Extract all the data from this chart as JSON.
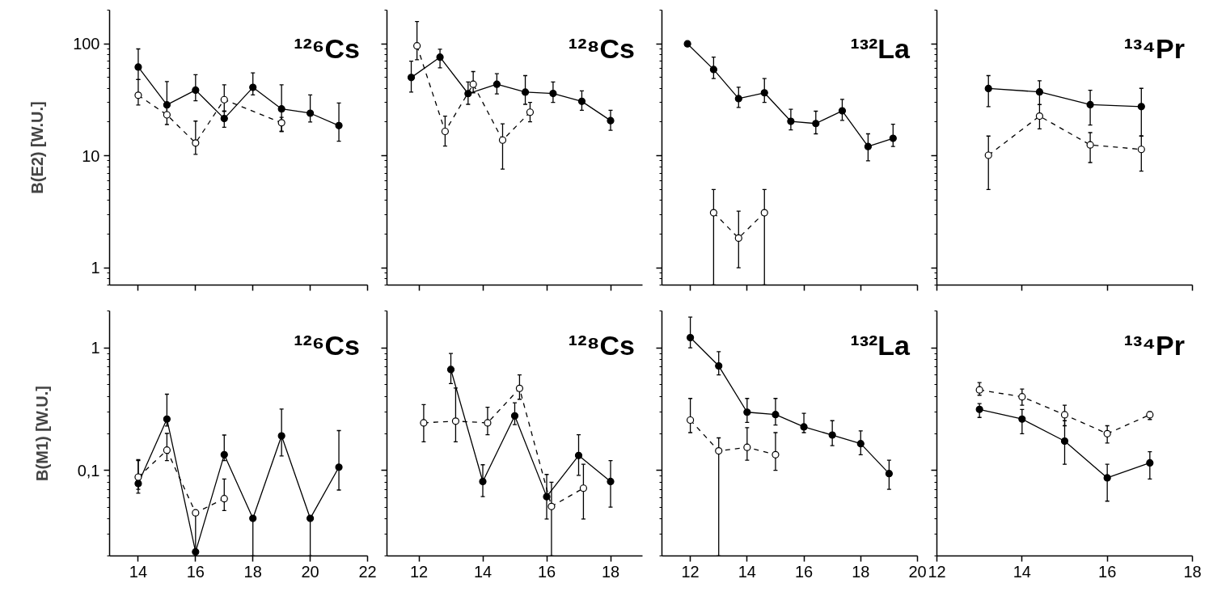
{
  "chart_data": [
    {
      "type": "line",
      "title": "¹²⁶Cs",
      "ylabel": "B(E2) [W.U.]",
      "xlim": [
        13,
        22
      ],
      "xticks": [
        14,
        16,
        18,
        20,
        22
      ],
      "ylim": [
        0.7,
        200
      ],
      "yticks": [
        1,
        10,
        100
      ],
      "log": true,
      "tick_labels": "y",
      "marker": "circle",
      "series": [
        {
          "color": "#000000",
          "line_style": "solid",
          "x": [
            14,
            15,
            16,
            17,
            18,
            19,
            20,
            21
          ],
          "values": [
            62,
            28.5,
            38.6,
            21.5,
            40.8,
            26.2,
            24,
            18.6
          ],
          "errors": [
            [
              48,
              90
            ],
            [
              24,
              46
            ],
            [
              31,
              53
            ],
            [
              18,
              25
            ],
            [
              35,
              55
            ],
            [
              16.5,
              43
            ],
            [
              20,
              35
            ],
            [
              13.5,
              29.6
            ]
          ]
        },
        {
          "color": "#000000",
          "line_style": "dashed",
          "x": [
            14,
            15,
            16,
            17,
            19
          ],
          "values": [
            34.7,
            23.2,
            13,
            31.7,
            19.7
          ],
          "errors": [
            [
              28.4,
              48
            ],
            [
              19,
              27
            ],
            [
              10.3,
              20.4
            ],
            [
              25,
              43
            ],
            [
              16.5,
              22
            ]
          ]
        }
      ]
    },
    {
      "type": "line",
      "title": "¹²⁸Cs",
      "xlim": [
        11,
        19
      ],
      "xticks": [
        12,
        14,
        16,
        18
      ],
      "ylim": [
        0.7,
        200
      ],
      "yticks": [
        1,
        10,
        100
      ],
      "log": true,
      "tick_labels": false,
      "marker": "circle",
      "series": [
        {
          "color": "#000000",
          "line_style": "solid",
          "x": [
            11.76,
            12.66,
            13.54,
            14.44,
            15.33,
            16.2,
            17.1,
            18.0
          ],
          "values": [
            50,
            76,
            35.9,
            43.5,
            37,
            36,
            30.6,
            20.6
          ],
          "errors": [
            [
              37,
              70
            ],
            [
              61,
              89.5
            ],
            [
              28.8,
              45.6
            ],
            [
              35.7,
              54
            ],
            [
              28.8,
              52
            ],
            [
              30,
              45.6
            ],
            [
              25.5,
              38
            ],
            [
              16.9,
              25.5
            ]
          ]
        },
        {
          "color": "#000000",
          "line_style": "dashed",
          "x": [
            11.94,
            12.82,
            13.7,
            14.62,
            15.48
          ],
          "values": [
            96,
            16.5,
            43.5,
            13.8,
            24.5
          ],
          "errors": [
            [
              72,
              158
            ],
            [
              12.2,
              22.6
            ],
            [
              36.5,
              56.5
            ],
            [
              7.6,
              19.3
            ],
            [
              20.1,
              30
            ]
          ]
        }
      ]
    },
    {
      "type": "line",
      "title": "¹³²La",
      "xlim": [
        11,
        20
      ],
      "xticks": [
        12,
        14,
        16,
        18,
        20
      ],
      "ylim": [
        0.7,
        200
      ],
      "yticks": [
        1,
        10,
        100
      ],
      "log": true,
      "tick_labels": false,
      "marker": "circle",
      "series": [
        {
          "color": "#000000",
          "line_style": "solid",
          "x": [
            11.9,
            12.82,
            13.7,
            14.61,
            15.54,
            16.42,
            17.35,
            18.26,
            19.14
          ],
          "values": [
            100,
            59,
            32.4,
            36.5,
            20.3,
            19.4,
            25.2,
            12.1,
            14.3
          ],
          "errors": [
            null,
            [
              49,
              76
            ],
            [
              27,
              41
            ],
            [
              30,
              49
            ],
            [
              17,
              26
            ],
            [
              15.7,
              25
            ],
            [
              20.7,
              31.9
            ],
            [
              9,
              15.7
            ],
            [
              12.1,
              19.1
            ]
          ]
        },
        {
          "color": "#000000",
          "line_style": "dashed",
          "x": [
            12.82,
            13.7,
            14.61
          ],
          "values": [
            3.1,
            1.84,
            3.1
          ],
          "errors": [
            [
              0.7,
              5
            ],
            [
              1,
              3.2
            ],
            [
              0.7,
              5
            ]
          ]
        }
      ]
    },
    {
      "type": "line",
      "title": "¹³⁴Pr",
      "xlim": [
        12,
        18
      ],
      "xticks": [
        12,
        14,
        16,
        18
      ],
      "ylim": [
        0.7,
        200
      ],
      "yticks": [
        1,
        10,
        100
      ],
      "log": true,
      "tick_labels": false,
      "marker": "circle",
      "series": [
        {
          "color": "#000000",
          "line_style": "solid",
          "x": [
            13.21,
            14.41,
            15.6,
            16.8
          ],
          "values": [
            39.9,
            37.2,
            28.6,
            27.5
          ],
          "errors": [
            [
              27.5,
              52
            ],
            [
              28.6,
              46.8
            ],
            [
              18.8,
              38.4
            ],
            [
              15,
              40
            ]
          ]
        },
        {
          "color": "#000000",
          "line_style": "dashed",
          "x": [
            13.21,
            14.41,
            15.6,
            16.8
          ],
          "values": [
            10.1,
            22.6,
            12.5,
            11.4
          ],
          "errors": [
            [
              5,
              15
            ],
            [
              17.4,
              28.6
            ],
            [
              8.7,
              16.1
            ],
            [
              7.3,
              15
            ]
          ]
        }
      ]
    },
    {
      "type": "line",
      "title": "¹²⁶Cs",
      "ylabel": "B(M1) [W.U.]",
      "xlim": [
        13,
        22
      ],
      "xticks": [
        14,
        16,
        18,
        20,
        22
      ],
      "ylim": [
        0.02,
        2
      ],
      "yticks": [
        {
          "value": 0.1,
          "label": "0,1"
        },
        1
      ],
      "log": true,
      "marker": "circle",
      "series": [
        {
          "color": "#000000",
          "line_style": "solid",
          "x": [
            14,
            15,
            16,
            17,
            18,
            19,
            20,
            21
          ],
          "values": [
            0.078,
            0.262,
            0.0216,
            0.134,
            0.0405,
            0.191,
            0.0405,
            0.106
          ],
          "errors": [
            [
              0.065,
              0.122
            ],
            [
              0.23,
              0.418
            ],
            null,
            [
              0.12,
              0.194
            ],
            [
              0.02,
              0.0405
            ],
            [
              0.131,
              0.316
            ],
            [
              0.02,
              0.0405
            ],
            [
              0.069,
              0.211
            ]
          ]
        },
        {
          "color": "#000000",
          "line_style": "dashed",
          "x": [
            14,
            15,
            16,
            17
          ],
          "values": [
            0.088,
            0.146,
            0.045,
            0.0587
          ],
          "errors": [
            [
              0.07,
              0.12
            ],
            [
              0.12,
              0.2
            ],
            [
              0.02,
              0.045
            ],
            [
              0.047,
              0.085
            ]
          ]
        }
      ]
    },
    {
      "type": "line",
      "title": "¹²⁸Cs",
      "xlim": [
        11,
        19
      ],
      "xticks": [
        12,
        14,
        16,
        18
      ],
      "ylim": [
        0.02,
        2
      ],
      "yticks": [
        0.1,
        1
      ],
      "log": true,
      "tick_labels": "x",
      "marker": "circle",
      "series": [
        {
          "color": "#000000",
          "line_style": "solid",
          "x": [
            13,
            14,
            15,
            16,
            17,
            18
          ],
          "values": [
            0.665,
            0.081,
            0.278,
            0.061,
            0.132,
            0.081
          ],
          "errors": [
            [
              0.51,
              0.9
            ],
            [
              0.061,
              0.111
            ],
            [
              0.236,
              0.356
            ],
            [
              0.04,
              0.0925
            ],
            [
              0.091,
              0.195
            ],
            [
              0.05,
              0.12
            ]
          ]
        },
        {
          "color": "#000000",
          "line_style": "dashed",
          "x": [
            12.15,
            13.15,
            14.15,
            15.15,
            16.15,
            17.15
          ],
          "values": [
            0.244,
            0.252,
            0.244,
            0.466,
            0.0507,
            0.0714
          ],
          "errors": [
            [
              0.171,
              0.344
            ],
            [
              0.171,
              0.47
            ],
            [
              0.195,
              0.327
            ],
            [
              0.38,
              0.6
            ],
            [
              0.02,
              0.08
            ],
            [
              0.04,
              0.112
            ]
          ]
        }
      ]
    },
    {
      "type": "line",
      "title": "¹³²La",
      "xlim": [
        11,
        20
      ],
      "xticks": [
        12,
        14,
        16,
        18,
        20
      ],
      "ylim": [
        0.02,
        2
      ],
      "yticks": [
        0.1,
        1
      ],
      "log": true,
      "tick_labels": "x",
      "marker": "circle",
      "series": [
        {
          "color": "#000000",
          "line_style": "solid",
          "x": [
            12,
            13,
            14,
            15,
            16,
            17,
            18,
            19
          ],
          "values": [
            1.21,
            0.711,
            0.298,
            0.285,
            0.226,
            0.194,
            0.165,
            0.094
          ],
          "errors": [
            [
              1.0,
              1.78
            ],
            [
              0.6,
              0.93
            ],
            [
              0.246,
              0.386
            ],
            [
              0.234,
              0.386
            ],
            [
              0.203,
              0.292
            ],
            [
              0.159,
              0.254
            ],
            [
              0.134,
              0.21
            ],
            [
              0.07,
              0.121
            ]
          ]
        },
        {
          "color": "#000000",
          "line_style": "dashed",
          "x": [
            12,
            13,
            14,
            15
          ],
          "values": [
            0.257,
            0.144,
            0.154,
            0.134
          ],
          "errors": [
            [
              0.203,
              0.386
            ],
            [
              0.02,
              0.184
            ],
            [
              0.121,
              0.223
            ],
            [
              0.1,
              0.203
            ]
          ]
        }
      ]
    },
    {
      "type": "line",
      "title": "¹³⁴Pr",
      "xlim": [
        12,
        18
      ],
      "xticks": [
        12,
        14,
        16,
        18
      ],
      "ylim": [
        0.02,
        2
      ],
      "yticks": [
        0.1,
        1
      ],
      "log": true,
      "tick_labels": "x",
      "marker": "circle",
      "series": [
        {
          "color": "#000000",
          "line_style": "solid",
          "x": [
            13,
            14,
            15,
            16,
            17
          ],
          "values": [
            0.314,
            0.262,
            0.173,
            0.0868,
            0.115
          ],
          "errors": [
            [
              0.27,
              0.35
            ],
            [
              0.199,
              0.314
            ],
            [
              0.112,
              0.254
            ],
            [
              0.056,
              0.112
            ],
            [
              0.085,
              0.142
            ]
          ]
        },
        {
          "color": "#000000",
          "line_style": "dashed",
          "x": [
            13,
            14,
            15,
            16,
            17
          ],
          "values": [
            0.453,
            0.398,
            0.284,
            0.199,
            0.284
          ],
          "errors": [
            [
              0.41,
              0.52
            ],
            [
              0.34,
              0.46
            ],
            [
              0.231,
              0.34
            ],
            [
              0.167,
              0.231
            ],
            [
              0.26,
              0.3
            ]
          ]
        }
      ]
    }
  ]
}
